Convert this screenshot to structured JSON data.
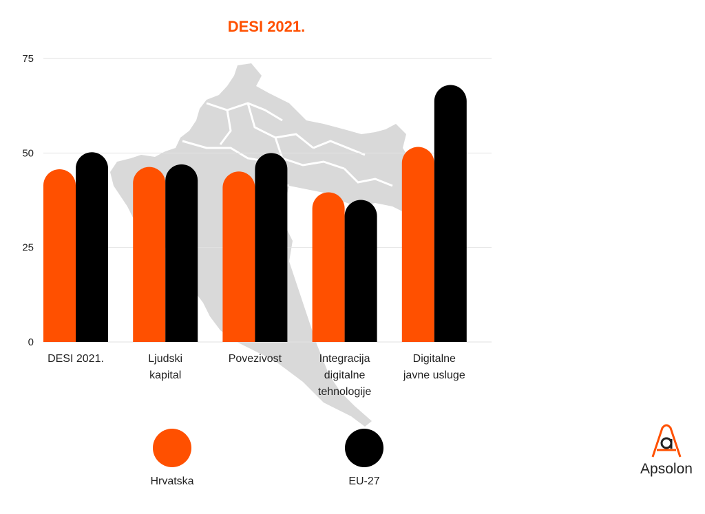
{
  "chart_data": {
    "type": "bar",
    "title": "DESI 2021.",
    "categories": [
      [
        "DESI 2021."
      ],
      [
        "Ljudski",
        "kapital"
      ],
      [
        "Povezivost"
      ],
      [
        "Integracija",
        "digitalne",
        "tehnologije"
      ],
      [
        "Digitalne",
        "javne usluge"
      ]
    ],
    "series": [
      {
        "name": "Hrvatska",
        "color": "#ff5000",
        "values": [
          45.7,
          46.3,
          45.1,
          39.6,
          51.6
        ]
      },
      {
        "name": "EU-27",
        "color": "#000000",
        "values": [
          50.2,
          47.0,
          50.0,
          37.6,
          68.0
        ]
      }
    ],
    "yticks": [
      0,
      25,
      50,
      75
    ],
    "ylim": [
      0,
      75
    ],
    "xlabel": "",
    "ylabel": "",
    "legend": "bottom",
    "grid": true
  },
  "colors": {
    "title": "#ff5000",
    "grid": "#e2e2e2",
    "map": "#d6d6d6"
  },
  "logo": {
    "text": "Apsolon",
    "icon": "apsolon-logo-icon"
  }
}
